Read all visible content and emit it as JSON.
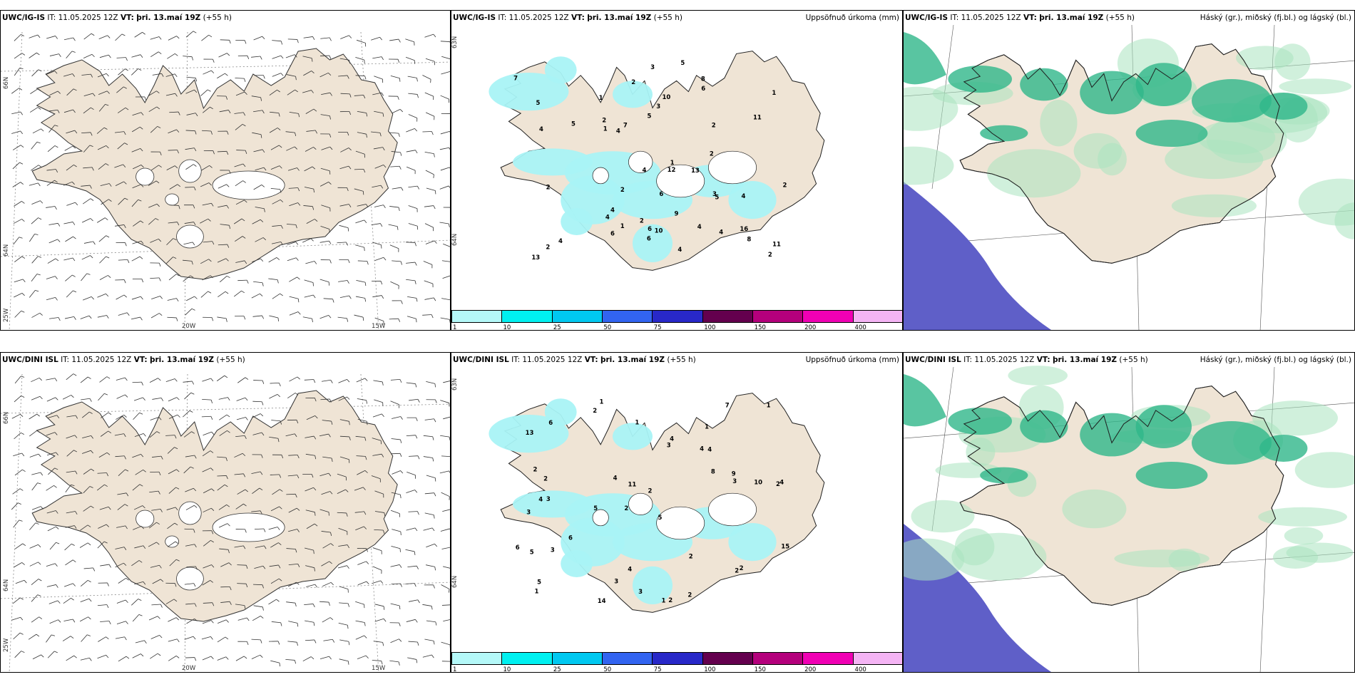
{
  "rows": [
    {
      "model": "UWC/IG-IS",
      "it": "IT: 11.05.2025 12Z",
      "vt_label": "VT:",
      "vt": "þri. 13.maí 19Z",
      "lead": "(+55 h)"
    },
    {
      "model": "UWC/DINI ISL",
      "it": "IT: 11.05.2025 12Z",
      "vt_label": "VT:",
      "vt": "þri. 13.maí 19Z",
      "lead": "(+55 h)"
    }
  ],
  "precip_title": "Uppsöfnuð úrkoma (mm)",
  "cloud_title": "Háský (gr.), miðský (fj.bl.) og lágský (bl.)",
  "grid_labels": {
    "lat_66": "66N",
    "lat_64": "64N",
    "lat_63": "63N",
    "lon_25": "25W",
    "lon_20": "20W",
    "lon_15": "15W"
  },
  "colorbar": {
    "levels": [
      "1",
      "10",
      "25",
      "50",
      "75",
      "100",
      "150",
      "200",
      "400"
    ],
    "colors": [
      "#b4f8f8",
      "#00f0f0",
      "#00c8f0",
      "#3264f0",
      "#2828c8",
      "#64004e",
      "#b4007c",
      "#f000b4",
      "#f4b4f4"
    ]
  },
  "colors": {
    "land": "#efe4d5",
    "precip": "#a9f3f5",
    "cloud_high": "#5f5fc8",
    "cloud_mid": "#2fb68a",
    "cloud_low": "#a9e3bf"
  },
  "precip_values": {
    "top": [
      "2",
      "4",
      "1",
      "6",
      "2",
      "5",
      "16",
      "8",
      "4",
      "4",
      "2",
      "1",
      "1",
      "3",
      "4",
      "2",
      "3",
      "2",
      "4",
      "1",
      "7",
      "4",
      "6",
      "13",
      "5",
      "6",
      "7",
      "3",
      "11",
      "9",
      "8",
      "2",
      "10",
      "13",
      "12",
      "4",
      "6",
      "2",
      "4",
      "2",
      "5",
      "4",
      "1",
      "6",
      "2",
      "4",
      "5",
      "10",
      "2",
      "11",
      "5"
    ],
    "bottom": [
      "1",
      "1",
      "2",
      "2",
      "5",
      "3",
      "13",
      "4",
      "3",
      "3",
      "2",
      "1",
      "2",
      "5",
      "1",
      "2",
      "4",
      "7",
      "8",
      "6",
      "2",
      "4",
      "4",
      "10",
      "6",
      "2",
      "11",
      "3",
      "2",
      "5",
      "2",
      "4",
      "3",
      "4",
      "2",
      "15",
      "9",
      "3",
      "1",
      "1",
      "5",
      "14",
      "2",
      "6",
      "3",
      "4"
    ]
  },
  "icons": [
    "wind-barb-icon",
    "coastline-icon"
  ]
}
